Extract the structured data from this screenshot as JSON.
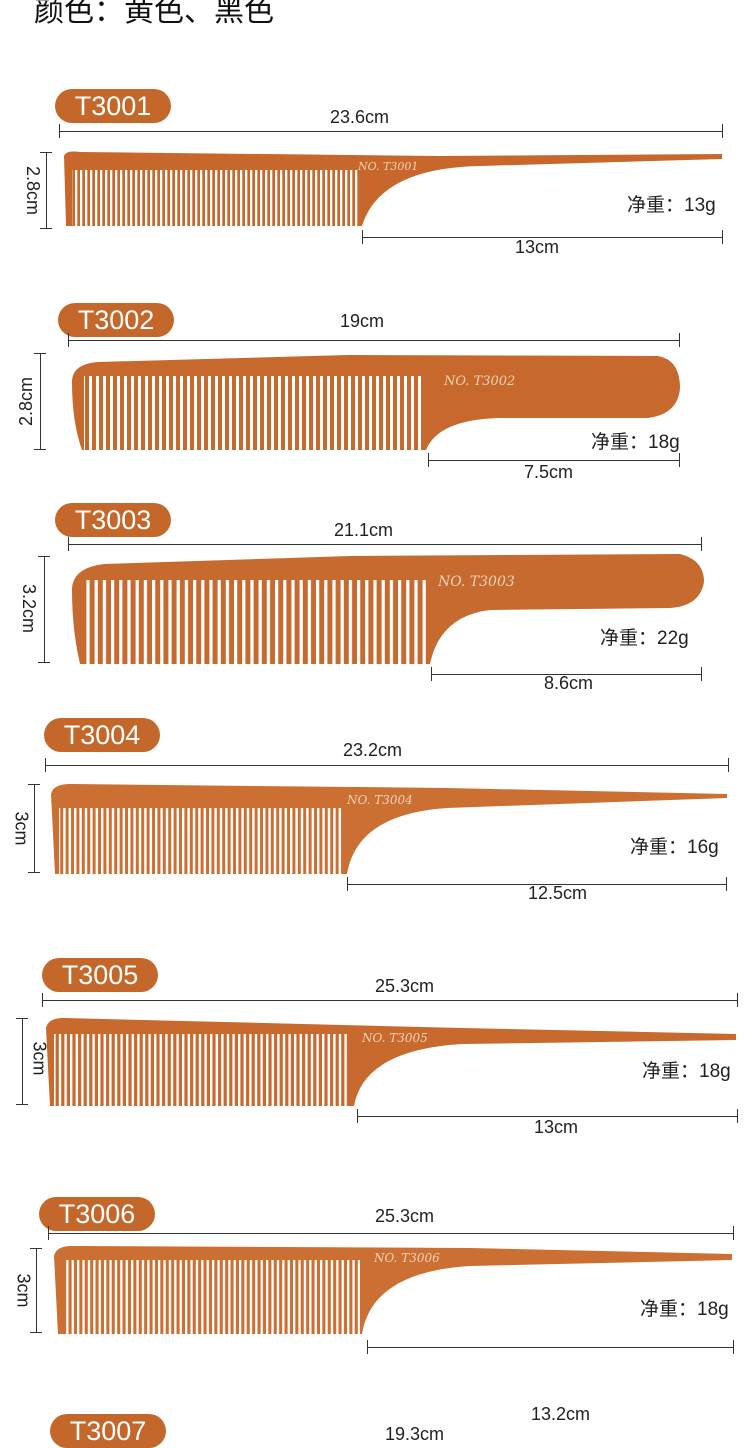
{
  "header": {
    "color_line": "颜色：黄色、黑色"
  },
  "weight_label": "净重：",
  "colors": {
    "badge": "#c4672a",
    "comb_light": "#d47a42",
    "comb_dark": "#b85a25",
    "text_stamp": "#f1d3b5"
  },
  "combs": [
    {
      "model": "T3001",
      "length": "23.6cm",
      "height": "2.8cm",
      "handle": "13cm",
      "weight": "13g",
      "stamp": "NO. T3001"
    },
    {
      "model": "T3002",
      "length": "19cm",
      "height": "2.8cm",
      "handle": "7.5cm",
      "weight": "18g",
      "stamp": "NO. T3002"
    },
    {
      "model": "T3003",
      "length": "21.1cm",
      "height": "3.2cm",
      "handle": "8.6cm",
      "weight": "22g",
      "stamp": "NO. T3003"
    },
    {
      "model": "T3004",
      "length": "23.2cm",
      "height": "3cm",
      "handle": "12.5cm",
      "weight": "16g",
      "stamp": "NO. T3004"
    },
    {
      "model": "T3005",
      "length": "25.3cm",
      "height": "3cm",
      "handle": "13cm",
      "weight": "18g",
      "stamp": "NO. T3005"
    },
    {
      "model": "T3006",
      "length": "25.3cm",
      "height": "3cm",
      "handle": "13.2cm",
      "weight": "18g",
      "stamp": "NO. T3006"
    },
    {
      "model": "T3007",
      "length": "19.3cm"
    }
  ]
}
